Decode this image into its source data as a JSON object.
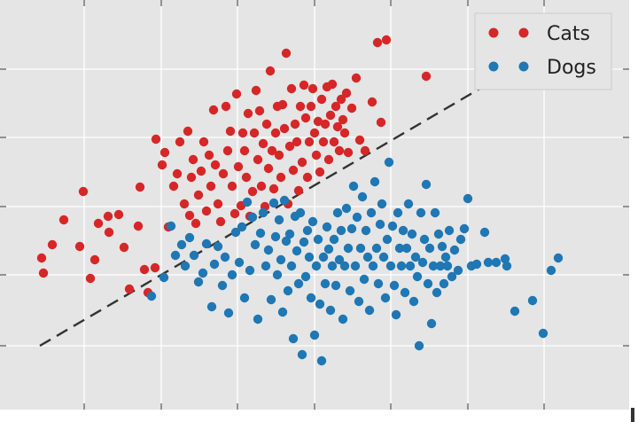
{
  "chart_data": {
    "type": "scatter",
    "title": "",
    "xlabel": "",
    "ylabel": "",
    "xlim": [
      0,
      720
    ],
    "ylim": [
      0,
      440
    ],
    "x_ticks": [
      95,
      182,
      268,
      355,
      441,
      528,
      614
    ],
    "y_ticks": [
      390,
      310,
      233,
      155,
      78
    ],
    "grid": true,
    "legend": {
      "position": "top-right"
    },
    "decision_boundary": {
      "x": [
        45,
        545
      ],
      "y": [
        390,
        98
      ],
      "style": "dashed",
      "color": "#333333"
    },
    "series": [
      {
        "name": "Cats",
        "color": "#d62728",
        "points": [
          [
            47,
            291
          ],
          [
            49,
            308
          ],
          [
            59,
            276
          ],
          [
            72,
            248
          ],
          [
            90,
            278
          ],
          [
            94,
            216
          ],
          [
            102,
            314
          ],
          [
            107,
            293
          ],
          [
            111,
            252
          ],
          [
            122,
            244
          ],
          [
            123,
            262
          ],
          [
            134,
            242
          ],
          [
            140,
            279
          ],
          [
            146,
            326
          ],
          [
            156,
            255
          ],
          [
            158,
            211
          ],
          [
            163,
            304
          ],
          [
            167,
            330
          ],
          [
            175,
            302
          ],
          [
            176,
            157
          ],
          [
            183,
            186
          ],
          [
            186,
            172
          ],
          [
            190,
            256
          ],
          [
            196,
            210
          ],
          [
            200,
            196
          ],
          [
            203,
            160
          ],
          [
            208,
            230
          ],
          [
            212,
            148
          ],
          [
            214,
            243
          ],
          [
            216,
            200
          ],
          [
            218,
            180
          ],
          [
            221,
            252
          ],
          [
            224,
            220
          ],
          [
            227,
            193
          ],
          [
            230,
            160
          ],
          [
            233,
            238
          ],
          [
            236,
            175
          ],
          [
            238,
            210
          ],
          [
            241,
            124
          ],
          [
            243,
            186
          ],
          [
            246,
            230
          ],
          [
            249,
            250
          ],
          [
            252,
            196
          ],
          [
            255,
            120
          ],
          [
            257,
            170
          ],
          [
            260,
            148
          ],
          [
            262,
            210
          ],
          [
            265,
            241
          ],
          [
            267,
            106
          ],
          [
            269,
            188
          ],
          [
            272,
            232
          ],
          [
            274,
            150
          ],
          [
            276,
            170
          ],
          [
            278,
            200
          ],
          [
            280,
            128
          ],
          [
            282,
            244
          ],
          [
            285,
            216
          ],
          [
            287,
            150
          ],
          [
            289,
            102
          ],
          [
            291,
            180
          ],
          [
            293,
            125
          ],
          [
            295,
            210
          ],
          [
            297,
            162
          ],
          [
            299,
            233
          ],
          [
            301,
            140
          ],
          [
            303,
            190
          ],
          [
            305,
            80
          ],
          [
            307,
            170
          ],
          [
            309,
            213
          ],
          [
            311,
            150
          ],
          [
            313,
            120
          ],
          [
            315,
            175
          ],
          [
            317,
            200
          ],
          [
            319,
            118
          ],
          [
            321,
            145
          ],
          [
            323,
            60
          ],
          [
            325,
            230
          ],
          [
            327,
            165
          ],
          [
            329,
            100
          ],
          [
            331,
            192
          ],
          [
            333,
            140
          ],
          [
            335,
            160
          ],
          [
            337,
            215
          ],
          [
            339,
            120
          ],
          [
            341,
            183
          ],
          [
            343,
            96
          ],
          [
            345,
            133
          ],
          [
            347,
            200
          ],
          [
            349,
            160
          ],
          [
            351,
            120
          ],
          [
            353,
            100
          ],
          [
            355,
            150
          ],
          [
            357,
            175
          ],
          [
            359,
            137
          ],
          [
            361,
            194
          ],
          [
            363,
            112
          ],
          [
            365,
            160
          ],
          [
            367,
            140
          ],
          [
            369,
            98
          ],
          [
            371,
            180
          ],
          [
            373,
            130
          ],
          [
            375,
            95
          ],
          [
            377,
            160
          ],
          [
            379,
            120
          ],
          [
            381,
            143
          ],
          [
            383,
            170
          ],
          [
            385,
            112
          ],
          [
            387,
            135
          ],
          [
            389,
            150
          ],
          [
            391,
            105
          ],
          [
            393,
            172
          ],
          [
            397,
            122
          ],
          [
            402,
            88
          ],
          [
            406,
            158
          ],
          [
            412,
            170
          ],
          [
            420,
            115
          ],
          [
            426,
            48
          ],
          [
            430,
            138
          ],
          [
            436,
            45
          ],
          [
            481,
            86
          ]
        ]
      },
      {
        "name": "Dogs",
        "color": "#1f77b4",
        "points": [
          [
            171,
            334
          ],
          [
            185,
            313
          ],
          [
            193,
            255
          ],
          [
            198,
            288
          ],
          [
            205,
            276
          ],
          [
            209,
            300
          ],
          [
            214,
            268
          ],
          [
            219,
            288
          ],
          [
            224,
            318
          ],
          [
            229,
            308
          ],
          [
            233,
            275
          ],
          [
            239,
            346
          ],
          [
            242,
            298
          ],
          [
            246,
            278
          ],
          [
            251,
            322
          ],
          [
            254,
            290
          ],
          [
            258,
            353
          ],
          [
            262,
            310
          ],
          [
            266,
            262
          ],
          [
            270,
            296
          ],
          [
            273,
            256
          ],
          [
            276,
            336
          ],
          [
            279,
            228
          ],
          [
            282,
            305
          ],
          [
            285,
            245
          ],
          [
            288,
            276
          ],
          [
            291,
            360
          ],
          [
            294,
            263
          ],
          [
            297,
            240
          ],
          [
            300,
            300
          ],
          [
            303,
            282
          ],
          [
            306,
            338
          ],
          [
            309,
            229
          ],
          [
            311,
            267
          ],
          [
            313,
            310
          ],
          [
            315,
            248
          ],
          [
            317,
            293
          ],
          [
            319,
            352
          ],
          [
            321,
            226
          ],
          [
            323,
            272
          ],
          [
            325,
            328
          ],
          [
            327,
            264
          ],
          [
            329,
            300
          ],
          [
            331,
            382
          ],
          [
            333,
            244
          ],
          [
            335,
            283
          ],
          [
            337,
            320
          ],
          [
            339,
            240
          ],
          [
            341,
            400
          ],
          [
            343,
            273
          ],
          [
            345,
            312
          ],
          [
            347,
            260
          ],
          [
            349,
            290
          ],
          [
            351,
            336
          ],
          [
            353,
            250
          ],
          [
            355,
            378
          ],
          [
            357,
            300
          ],
          [
            359,
            270
          ],
          [
            361,
            343
          ],
          [
            363,
            407
          ],
          [
            365,
            290
          ],
          [
            367,
            320
          ],
          [
            369,
            256
          ],
          [
            371,
            281
          ],
          [
            373,
            350
          ],
          [
            375,
            300
          ],
          [
            377,
            270
          ],
          [
            379,
            322
          ],
          [
            381,
            240
          ],
          [
            383,
            293
          ],
          [
            385,
            260
          ],
          [
            387,
            360
          ],
          [
            389,
            300
          ],
          [
            391,
            235
          ],
          [
            393,
            280
          ],
          [
            395,
            328
          ],
          [
            397,
            258
          ],
          [
            399,
            210
          ],
          [
            401,
            300
          ],
          [
            403,
            245
          ],
          [
            405,
            340
          ],
          [
            407,
            280
          ],
          [
            409,
            222
          ],
          [
            411,
            315
          ],
          [
            413,
            260
          ],
          [
            415,
            290
          ],
          [
            417,
            350
          ],
          [
            419,
            240
          ],
          [
            421,
            300
          ],
          [
            423,
            205
          ],
          [
            425,
            280
          ],
          [
            427,
            320
          ],
          [
            429,
            253
          ],
          [
            431,
            230
          ],
          [
            433,
            290
          ],
          [
            435,
            336
          ],
          [
            437,
            270
          ],
          [
            439,
            183
          ],
          [
            441,
            300
          ],
          [
            443,
            255
          ],
          [
            445,
            322
          ],
          [
            447,
            355
          ],
          [
            449,
            240
          ],
          [
            451,
            280
          ],
          [
            453,
            300
          ],
          [
            455,
            260
          ],
          [
            457,
            330
          ],
          [
            459,
            280
          ],
          [
            461,
            230
          ],
          [
            463,
            300
          ],
          [
            465,
            264
          ],
          [
            467,
            340
          ],
          [
            469,
            290
          ],
          [
            471,
            312
          ],
          [
            473,
            390
          ],
          [
            475,
            240
          ],
          [
            477,
            296
          ],
          [
            479,
            270
          ],
          [
            481,
            208
          ],
          [
            483,
            320
          ],
          [
            485,
            280
          ],
          [
            487,
            365
          ],
          [
            489,
            300
          ],
          [
            491,
            240
          ],
          [
            493,
            330
          ],
          [
            495,
            264
          ],
          [
            497,
            300
          ],
          [
            499,
            278
          ],
          [
            501,
            320
          ],
          [
            503,
            290
          ],
          [
            505,
            300
          ],
          [
            507,
            260
          ],
          [
            510,
            312
          ],
          [
            513,
            282
          ],
          [
            517,
            305
          ],
          [
            520,
            270
          ],
          [
            524,
            258
          ],
          [
            528,
            224
          ],
          [
            532,
            300
          ],
          [
            538,
            298
          ],
          [
            547,
            262
          ],
          [
            551,
            296
          ],
          [
            560,
            296
          ],
          [
            570,
            292
          ],
          [
            572,
            300
          ],
          [
            581,
            351
          ],
          [
            601,
            339
          ],
          [
            613,
            376
          ],
          [
            622,
            305
          ],
          [
            630,
            291
          ]
        ]
      }
    ]
  }
}
